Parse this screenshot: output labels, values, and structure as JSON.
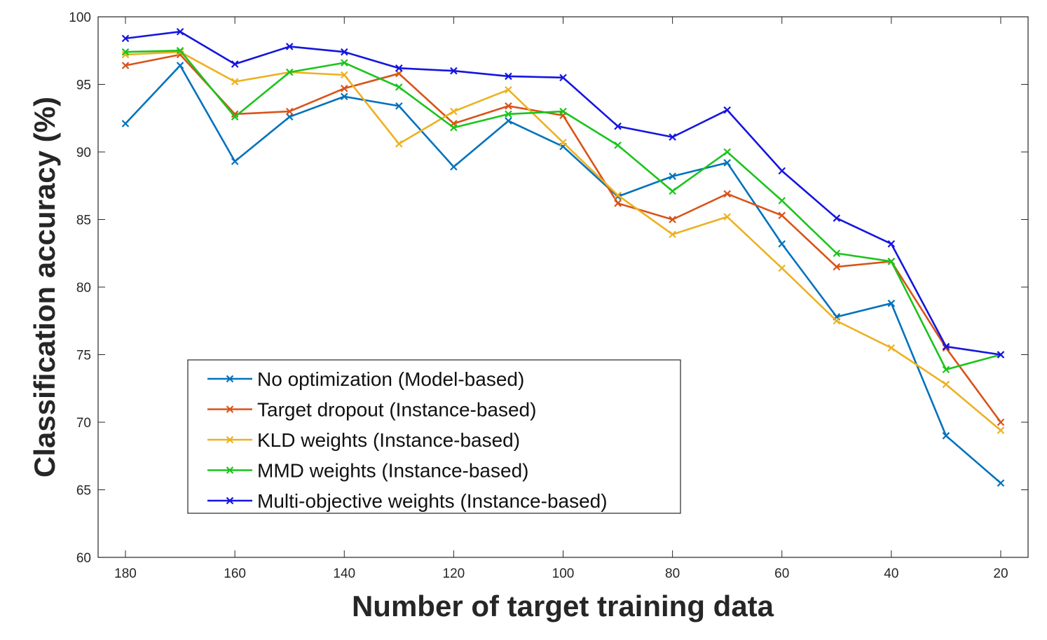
{
  "chart_data": {
    "type": "line",
    "title": "",
    "xlabel": "Number of target training data",
    "ylabel": "Classification accuracy (%)",
    "x": [
      180,
      170,
      160,
      150,
      140,
      130,
      120,
      110,
      100,
      90,
      80,
      70,
      60,
      50,
      40,
      30,
      20
    ],
    "xlim": [
      185,
      15
    ],
    "xticks": [
      180,
      160,
      140,
      120,
      100,
      80,
      60,
      40,
      20
    ],
    "ylim": [
      60,
      100
    ],
    "yticks": [
      60,
      65,
      70,
      75,
      80,
      85,
      90,
      95,
      100
    ],
    "legend_position": "bottom-left",
    "marker": "x",
    "series": [
      {
        "name": "No optimization (Model-based)",
        "color": "#0072BD",
        "values": [
          92.1,
          96.4,
          89.3,
          92.6,
          94.1,
          93.4,
          88.9,
          92.3,
          90.4,
          86.7,
          88.2,
          89.2,
          83.2,
          77.8,
          78.8,
          69.0,
          65.5
        ]
      },
      {
        "name": "Target dropout (Instance-based)",
        "color": "#D95319",
        "values": [
          96.4,
          97.2,
          92.8,
          93.0,
          94.7,
          95.8,
          92.1,
          93.4,
          92.7,
          86.2,
          85.0,
          86.9,
          85.3,
          81.5,
          81.9,
          75.5,
          70.0
        ]
      },
      {
        "name": "KLD weights (Instance-based)",
        "color": "#EDB120",
        "values": [
          97.2,
          97.4,
          95.2,
          95.9,
          95.7,
          90.6,
          93.0,
          94.6,
          90.7,
          86.8,
          83.9,
          85.2,
          81.4,
          77.5,
          75.5,
          72.8,
          69.4
        ]
      },
      {
        "name": "MMD weights (Instance-based)",
        "color": "#1BC41B",
        "values": [
          97.4,
          97.5,
          92.6,
          95.9,
          96.6,
          94.8,
          91.8,
          92.8,
          93.0,
          90.5,
          87.1,
          90.0,
          86.4,
          82.5,
          81.9,
          73.9,
          75.0
        ]
      },
      {
        "name": "Multi-objective weights (Instance-based)",
        "color": "#1515E0",
        "values": [
          98.4,
          98.9,
          96.5,
          97.8,
          97.4,
          96.2,
          96.0,
          95.6,
          95.5,
          91.9,
          91.1,
          93.1,
          88.6,
          85.1,
          83.2,
          75.6,
          75.0
        ]
      }
    ]
  }
}
